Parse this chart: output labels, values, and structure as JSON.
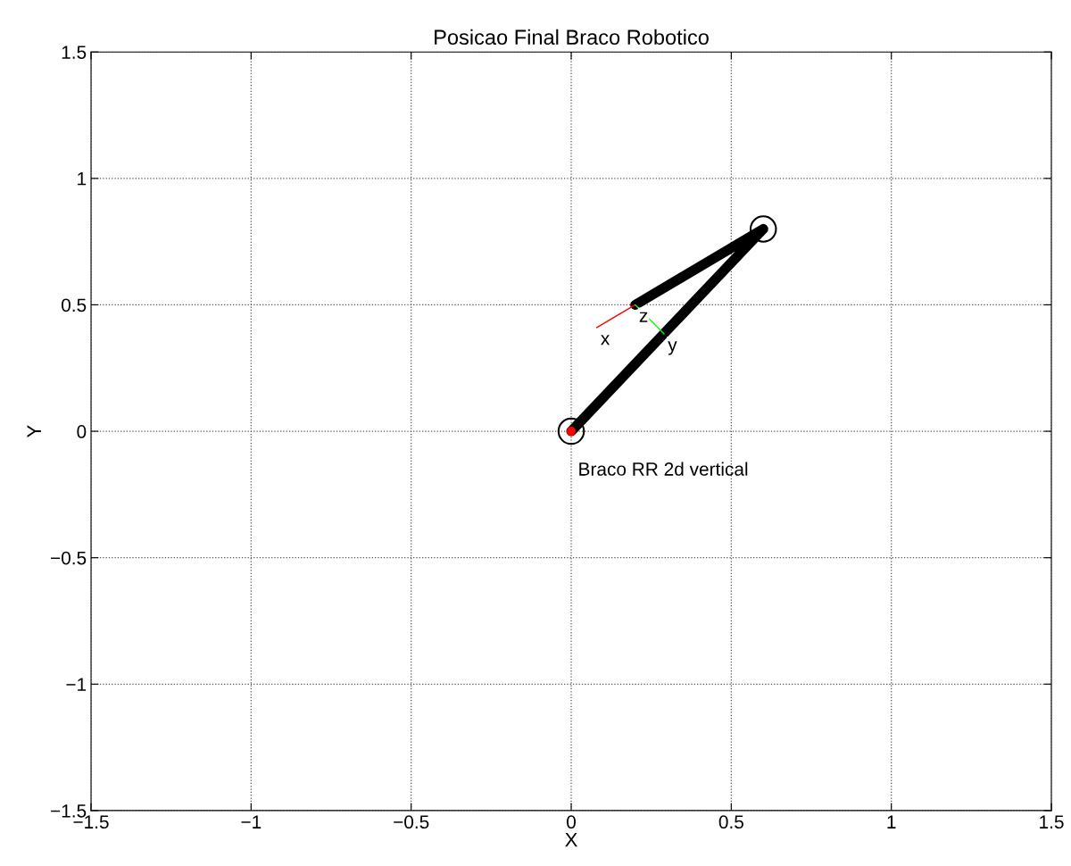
{
  "chart_data": {
    "type": "line",
    "title": "Posicao Final Braco Robotico",
    "xlabel": "X",
    "ylabel": "Y",
    "xlim": [
      -1.5,
      1.5
    ],
    "ylim": [
      -1.5,
      1.5
    ],
    "xticks": [
      {
        "value": -1.5,
        "label": "−1.5"
      },
      {
        "value": -1,
        "label": "−1"
      },
      {
        "value": -0.5,
        "label": "−0.5"
      },
      0,
      0.5,
      1,
      1.5
    ],
    "yticks": [
      {
        "value": -1.5,
        "label": "−1.5"
      },
      {
        "value": -1,
        "label": "−1"
      },
      {
        "value": -0.5,
        "label": "−0.5"
      },
      0,
      0.5,
      1,
      1.5
    ],
    "grid": true,
    "series": [
      {
        "color": "#000000",
        "x": [
          0,
          0.6,
          0.2
        ],
        "values": [
          0,
          0.8,
          0.5
        ]
      },
      {
        "color": "#ff0000",
        "x": [
          0.2,
          0.08
        ],
        "values": [
          0.5,
          0.41
        ]
      },
      {
        "color": "#00ff00",
        "x": [
          0.2,
          0.29
        ],
        "values": [
          0.5,
          0.385
        ]
      },
      {
        "type": "scatter",
        "color": "#000000",
        "marker": "circle",
        "x": [
          0,
          0.6
        ],
        "values": [
          0,
          0.8
        ]
      },
      {
        "type": "scatter",
        "color": "#ff0000",
        "marker": "circle",
        "x": [
          0
        ],
        "values": [
          0
        ]
      }
    ],
    "annotations": [
      {
        "text": "x",
        "x": 0.08,
        "y": 0.41
      },
      {
        "text": "y",
        "x": 0.29,
        "y": 0.385
      },
      {
        "text": "z",
        "x": 0.2,
        "y": 0.5
      },
      "Braco RR 2d vertical"
    ]
  }
}
